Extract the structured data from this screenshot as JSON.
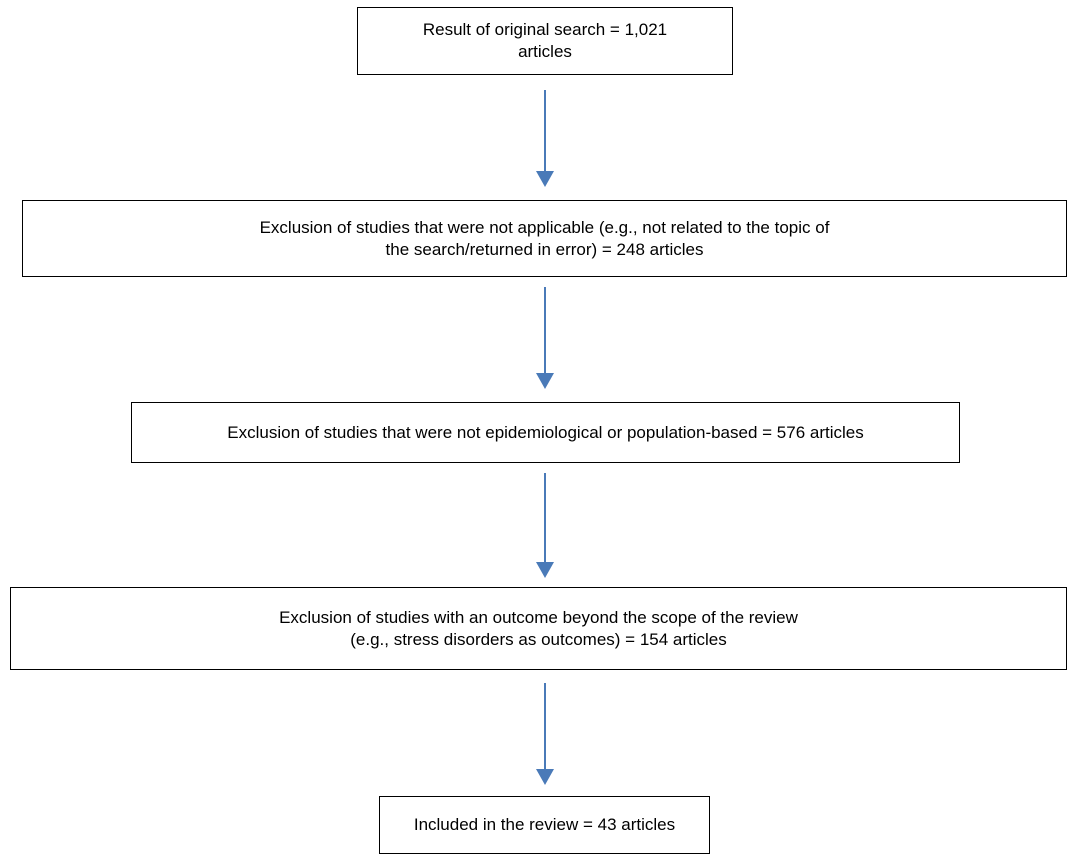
{
  "flowchart": {
    "steps": [
      {
        "text": "Result of original search = 1,021\narticles"
      },
      {
        "text": "Exclusion of studies that were not applicable (e.g., not related to the topic of\nthe search/returned in error) = 248 articles"
      },
      {
        "text": "Exclusion of studies that were not epidemiological or population-based = 576 articles"
      },
      {
        "text": "Exclusion of studies with an outcome beyond the scope of the review\n(e.g., stress disorders as outcomes) = 154 articles"
      },
      {
        "text": "Included in the review = 43 articles"
      }
    ],
    "colors": {
      "arrow": "#4a7ab8",
      "box_border": "#000000"
    }
  }
}
